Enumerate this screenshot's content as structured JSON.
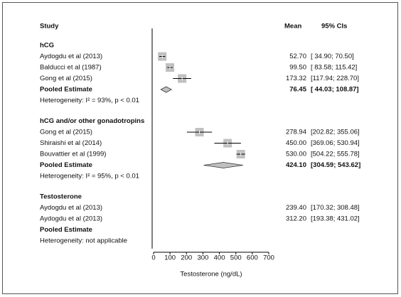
{
  "chart_data": {
    "type": "forest",
    "columns": {
      "study": "Study",
      "mean": "Mean",
      "ci": "95% CIs"
    },
    "x_label": "Testosterone (ng/dL)",
    "xlim": [
      0,
      700
    ],
    "xticks": [
      0,
      100,
      200,
      300,
      400,
      500,
      600,
      700
    ],
    "color": "#c0c0c0",
    "groups": [
      {
        "name": "hCG",
        "studies": [
          {
            "name": "Aydogdu et al (2013)",
            "mean": 52.7,
            "mean_label": "52.70",
            "lower": 34.9,
            "upper": 70.5,
            "ci_label": "[ 34.90; 70.50]"
          },
          {
            "name": "Balducci et al (1987)",
            "mean": 99.5,
            "mean_label": "99.50",
            "lower": 83.58,
            "upper": 115.42,
            "ci_label": "[ 83.58; 115.42]"
          },
          {
            "name": "Gong et al (2015)",
            "mean": 173.32,
            "lower": 117.94,
            "upper": 228.7,
            "ci_label": "[117.94; 228.70]"
          }
        ],
        "pooled": {
          "name": "Pooled Estimate",
          "mean": 76.45,
          "lower": 44.03,
          "upper": 108.87,
          "ci_label": "[ 44.03; 108.87]"
        },
        "heterogeneity": "Heterogeneity: I² = 93%, p < 0.01"
      },
      {
        "name": "hCG and/or other gonadotropins",
        "studies": [
          {
            "name": "Gong et al (2015)",
            "mean": 278.94,
            "lower": 202.82,
            "upper": 355.06,
            "ci_label": "[202.82; 355.06]"
          },
          {
            "name": "Shiraishi et al (2014)",
            "mean": 450,
            "mean_label": "450.00",
            "lower": 369.06,
            "upper": 530.94,
            "ci_label": "[369.06; 530.94]"
          },
          {
            "name": "Bouvattier et al (1999)",
            "mean": 530,
            "mean_label": "530.00",
            "lower": 504.22,
            "upper": 555.78,
            "ci_label": "[504.22; 555.78]"
          }
        ],
        "pooled": {
          "name": "Pooled Estimate",
          "mean": 424.1,
          "mean_label": "424.10",
          "lower": 304.59,
          "upper": 543.62,
          "ci_label": "[304.59; 543.62]"
        },
        "heterogeneity": "Heterogeneity: I² = 95%, p < 0.01"
      },
      {
        "name": "Testosterone",
        "studies": [
          {
            "name": "Aydogdu et al (2013)",
            "mean_label": "239.40",
            "ci_label": "[170.32; 308.48]"
          },
          {
            "name": "Aydogdu et al (2013)",
            "mean_label": "312.20",
            "ci_label": "[193.38; 431.02]"
          }
        ],
        "pooled": {
          "name": "Pooled Estimate"
        },
        "heterogeneity": "Heterogeneity: not applicable"
      }
    ]
  }
}
